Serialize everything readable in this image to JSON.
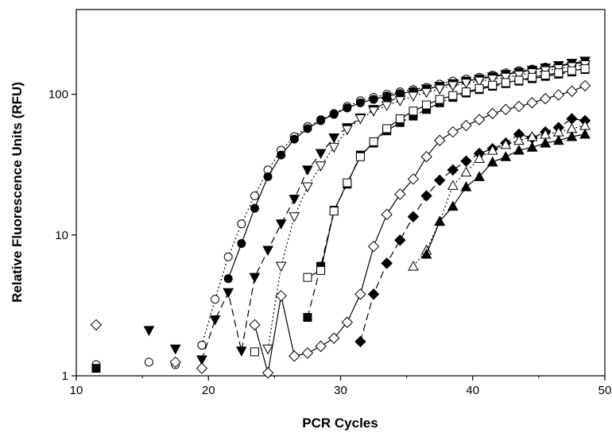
{
  "chart_data": {
    "type": "scatter",
    "title": "",
    "xlabel": "PCR Cycles",
    "ylabel": "Relative Fluorescence Units (RFU)",
    "xlim": [
      10,
      50
    ],
    "ylim": [
      1,
      400
    ],
    "yscale": "log",
    "grid": false,
    "legend": "none",
    "x_ticks": [
      "10",
      "20",
      "30",
      "40",
      "50"
    ],
    "y_ticks": [
      {
        "value": 1,
        "label": "1"
      },
      {
        "value": 10,
        "label": "10"
      },
      {
        "value": 100,
        "label": "100"
      }
    ],
    "series": [
      {
        "marker": "circle-open",
        "line": "dotted",
        "points": [
          [
            11.5,
            1.2
          ],
          [
            15.5,
            1.25
          ],
          [
            17.5,
            1.2
          ],
          [
            19.5,
            1.65
          ],
          [
            20.5,
            3.5
          ],
          [
            21.5,
            7
          ],
          [
            22.5,
            12
          ],
          [
            23.5,
            19
          ],
          [
            24.5,
            29
          ],
          [
            25.5,
            40
          ],
          [
            26.5,
            50
          ],
          [
            27.5,
            59
          ],
          [
            28.5,
            66
          ],
          [
            29.5,
            73
          ],
          [
            30.5,
            82
          ],
          [
            31.5,
            90
          ],
          [
            32.5,
            95
          ],
          [
            33.5,
            100
          ],
          [
            34.5,
            104
          ],
          [
            35.5,
            108
          ],
          [
            36.5,
            112
          ],
          [
            37.5,
            118
          ],
          [
            38.5,
            124
          ],
          [
            39.5,
            128
          ],
          [
            40.5,
            132
          ],
          [
            41.5,
            137
          ],
          [
            42.5,
            142
          ],
          [
            43.5,
            147
          ],
          [
            44.5,
            151
          ],
          [
            45.5,
            156
          ],
          [
            46.5,
            160
          ],
          [
            47.5,
            165
          ],
          [
            48.5,
            170
          ]
        ]
      },
      {
        "marker": "circle-filled",
        "line": "solid",
        "points": [
          [
            21.5,
            4.9
          ],
          [
            22.5,
            8.7
          ],
          [
            23.5,
            15.5
          ],
          [
            24.5,
            26
          ],
          [
            25.5,
            37
          ],
          [
            26.5,
            48
          ],
          [
            27.5,
            57
          ],
          [
            28.5,
            65
          ],
          [
            29.5,
            72
          ],
          [
            30.5,
            80
          ],
          [
            31.5,
            87
          ],
          [
            32.5,
            92
          ],
          [
            33.5,
            97
          ],
          [
            34.5,
            101
          ],
          [
            35.5,
            105
          ],
          [
            36.5,
            109
          ],
          [
            37.5,
            114
          ],
          [
            38.5,
            119
          ],
          [
            39.5,
            124
          ],
          [
            40.5,
            129
          ],
          [
            41.5,
            134
          ],
          [
            42.5,
            139
          ],
          [
            43.5,
            144
          ],
          [
            44.5,
            149
          ],
          [
            45.5,
            154
          ],
          [
            46.5,
            159
          ],
          [
            47.5,
            164
          ],
          [
            48.5,
            168
          ]
        ]
      },
      {
        "marker": "triangle-down-filled",
        "line": "dashed",
        "points": [
          [
            15.5,
            2.1
          ],
          [
            17.5,
            1.55
          ],
          [
            19.5,
            1.3
          ],
          [
            20.5,
            2.5
          ],
          [
            21.5,
            3.9
          ],
          [
            22.5,
            1.5
          ],
          [
            23.5,
            5
          ],
          [
            24.5,
            7.8
          ],
          [
            25.5,
            12
          ],
          [
            26.5,
            18
          ],
          [
            27.5,
            29
          ],
          [
            28.5,
            38
          ],
          [
            29.5,
            49
          ],
          [
            30.5,
            58
          ],
          [
            31.5,
            68
          ],
          [
            32.5,
            78
          ],
          [
            33.5,
            88
          ],
          [
            34.5,
            96
          ],
          [
            35.5,
            103
          ],
          [
            36.5,
            109
          ],
          [
            37.5,
            114
          ],
          [
            38.5,
            119
          ],
          [
            39.5,
            124
          ],
          [
            40.5,
            128
          ],
          [
            41.5,
            133
          ],
          [
            42.5,
            138
          ],
          [
            43.5,
            143
          ],
          [
            44.5,
            148
          ],
          [
            45.5,
            154
          ],
          [
            46.5,
            160
          ],
          [
            47.5,
            166
          ],
          [
            48.5,
            172
          ]
        ]
      },
      {
        "marker": "triangle-down-open",
        "line": "dotted",
        "points": [
          [
            24.5,
            1.55
          ],
          [
            25.5,
            6
          ],
          [
            26.5,
            13.5
          ],
          [
            27.5,
            22
          ],
          [
            28.5,
            31
          ],
          [
            29.5,
            42
          ],
          [
            30.5,
            56
          ],
          [
            31.5,
            67
          ],
          [
            32.5,
            76
          ],
          [
            33.5,
            83
          ],
          [
            34.5,
            90
          ],
          [
            35.5,
            97
          ],
          [
            36.5,
            103
          ],
          [
            37.5,
            109
          ],
          [
            38.5,
            115
          ],
          [
            39.5,
            120
          ],
          [
            40.5,
            124
          ],
          [
            41.5,
            128
          ],
          [
            42.5,
            132
          ],
          [
            43.5,
            137
          ],
          [
            44.5,
            142
          ],
          [
            45.5,
            147
          ],
          [
            46.5,
            152
          ],
          [
            47.5,
            157
          ],
          [
            48.5,
            162
          ]
        ]
      },
      {
        "marker": "square-filled",
        "line": "dashed",
        "points": [
          [
            11.5,
            1.13
          ],
          [
            27.5,
            2.6
          ],
          [
            28.5,
            6
          ],
          [
            29.5,
            15
          ],
          [
            30.5,
            23
          ],
          [
            31.5,
            37
          ],
          [
            32.5,
            45
          ],
          [
            33.5,
            55
          ],
          [
            34.5,
            63
          ],
          [
            35.5,
            70
          ],
          [
            36.5,
            78
          ],
          [
            37.5,
            87
          ],
          [
            38.5,
            95
          ],
          [
            39.5,
            102
          ],
          [
            40.5,
            108
          ],
          [
            41.5,
            114
          ],
          [
            42.5,
            119
          ],
          [
            43.5,
            124
          ],
          [
            44.5,
            129
          ],
          [
            45.5,
            134
          ],
          [
            46.5,
            139
          ],
          [
            47.5,
            144
          ],
          [
            48.5,
            150
          ]
        ]
      },
      {
        "marker": "square-open",
        "line": "solid",
        "points": [
          [
            23.5,
            1.48
          ],
          [
            27.5,
            5
          ],
          [
            28.5,
            5.6
          ],
          [
            29.5,
            14.8
          ],
          [
            30.5,
            23.5
          ],
          [
            31.5,
            36
          ],
          [
            32.5,
            46
          ],
          [
            33.5,
            57
          ],
          [
            34.5,
            67
          ],
          [
            35.5,
            76
          ],
          [
            36.5,
            84
          ],
          [
            37.5,
            92
          ],
          [
            38.5,
            98
          ],
          [
            39.5,
            104
          ],
          [
            40.5,
            110
          ],
          [
            41.5,
            116
          ],
          [
            42.5,
            121
          ],
          [
            43.5,
            126
          ],
          [
            44.5,
            132
          ],
          [
            45.5,
            137
          ],
          [
            46.5,
            142
          ],
          [
            47.5,
            147
          ],
          [
            48.5,
            152
          ]
        ]
      },
      {
        "marker": "diamond-open",
        "line": "solid",
        "points": [
          [
            11.5,
            2.3
          ],
          [
            17.5,
            1.25
          ],
          [
            19.5,
            1.13
          ],
          [
            23.5,
            2.3
          ],
          [
            24.5,
            1.05
          ],
          [
            25.5,
            3.7
          ],
          [
            26.5,
            1.38
          ],
          [
            27.5,
            1.45
          ],
          [
            28.5,
            1.62
          ],
          [
            29.5,
            1.85
          ],
          [
            30.5,
            2.4
          ],
          [
            31.5,
            3.8
          ],
          [
            32.5,
            8.3
          ],
          [
            33.5,
            14
          ],
          [
            34.5,
            19.5
          ],
          [
            35.5,
            25
          ],
          [
            36.5,
            36
          ],
          [
            37.5,
            47
          ],
          [
            38.5,
            54
          ],
          [
            39.5,
            60
          ],
          [
            40.5,
            66
          ],
          [
            41.5,
            73
          ],
          [
            42.5,
            78
          ],
          [
            43.5,
            82
          ],
          [
            44.5,
            87
          ],
          [
            45.5,
            93
          ],
          [
            46.5,
            99
          ],
          [
            47.5,
            105
          ],
          [
            48.5,
            115
          ]
        ]
      },
      {
        "marker": "diamond-filled",
        "line": "dashed",
        "points": [
          [
            31.5,
            1.75
          ],
          [
            32.5,
            3.8
          ],
          [
            33.5,
            6.3
          ],
          [
            34.5,
            9.2
          ],
          [
            35.5,
            13.5
          ],
          [
            36.5,
            19
          ],
          [
            37.5,
            24.5
          ],
          [
            38.5,
            29
          ],
          [
            39.5,
            33.5
          ],
          [
            40.5,
            38
          ],
          [
            41.5,
            41
          ],
          [
            42.5,
            45
          ],
          [
            43.5,
            52
          ],
          [
            44.5,
            49
          ],
          [
            45.5,
            54
          ],
          [
            46.5,
            58
          ],
          [
            47.5,
            67
          ],
          [
            48.5,
            65
          ]
        ]
      },
      {
        "marker": "triangle-up-open",
        "line": "dotted",
        "points": [
          [
            35.5,
            6
          ],
          [
            36.5,
            7.8
          ],
          [
            37.5,
            12.5
          ],
          [
            38.5,
            22.5
          ],
          [
            39.5,
            28
          ],
          [
            40.5,
            35
          ],
          [
            41.5,
            40
          ],
          [
            42.5,
            44
          ],
          [
            43.5,
            47
          ],
          [
            44.5,
            50
          ],
          [
            45.5,
            52
          ],
          [
            46.5,
            54
          ],
          [
            47.5,
            57
          ],
          [
            48.5,
            60
          ]
        ]
      },
      {
        "marker": "triangle-up-filled",
        "line": "solid",
        "points": [
          [
            36.5,
            7.3
          ],
          [
            37.5,
            12.5
          ],
          [
            38.5,
            16
          ],
          [
            39.5,
            22
          ],
          [
            40.5,
            26
          ],
          [
            41.5,
            33
          ],
          [
            42.5,
            36
          ],
          [
            43.5,
            40
          ],
          [
            44.5,
            42
          ],
          [
            45.5,
            45
          ],
          [
            46.5,
            47
          ],
          [
            47.5,
            50
          ],
          [
            48.5,
            52
          ]
        ]
      }
    ]
  }
}
